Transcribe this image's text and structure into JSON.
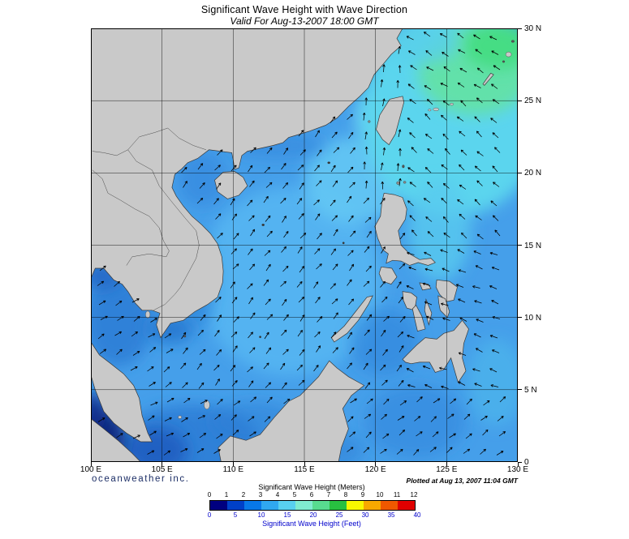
{
  "header": {
    "title": "Significant Wave Height with Wave Direction",
    "subtitle": "Valid For Aug-13-2007 18:00 GMT"
  },
  "axes": {
    "lon_labels": [
      "100 E",
      "105 E",
      "110 E",
      "115 E",
      "120 E",
      "125 E",
      "130 E"
    ],
    "lat_labels": [
      "30 N",
      "25 N",
      "20 N",
      "15 N",
      "10 N",
      "5 N",
      "0"
    ]
  },
  "footer": {
    "brand": "oceanweather inc.",
    "plotted": "Plotted at Aug 13, 2007 11:04 GMT"
  },
  "legend": {
    "meters_label": "Significant Wave Height (Meters)",
    "feet_label": "Significant Wave Height (Feet)",
    "meters_ticks": [
      "0",
      "1",
      "2",
      "3",
      "4",
      "5",
      "6",
      "7",
      "8",
      "9",
      "10",
      "11",
      "12"
    ],
    "feet_ticks": [
      "0",
      "5",
      "10",
      "15",
      "20",
      "25",
      "30",
      "35",
      "40"
    ],
    "colors": [
      "#000080",
      "#0040C8",
      "#0878E8",
      "#30A8F0",
      "#58D0F0",
      "#80ECD0",
      "#58DC90",
      "#28C040",
      "#F8F800",
      "#F8A800",
      "#F05800",
      "#E00000"
    ],
    "feet_color": "#0000CC"
  },
  "map": {
    "ocean_base_color": "#459FEA",
    "land_color": "#C9C9C9",
    "wave_regions": [
      {
        "name": "south-china-sea",
        "direction": "NE"
      },
      {
        "name": "pacific-northeast-of-taiwan",
        "direction": "NW"
      },
      {
        "name": "east-of-philippines",
        "direction": "WNW"
      },
      {
        "name": "gulf-of-thailand",
        "direction": "NE"
      },
      {
        "name": "malacca-strait",
        "direction": "calm"
      }
    ]
  }
}
